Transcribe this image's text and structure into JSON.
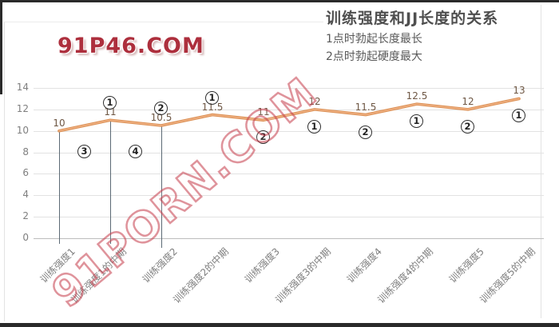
{
  "watermarks": {
    "top": "91P46.COM",
    "diagonal": "91PORN.COM"
  },
  "header": {
    "title": "训练强度和JJ长度的关系",
    "subtitle1": "1点时勃起长度最长",
    "subtitle2": "2点时勃起硬度最大"
  },
  "chart_data": {
    "type": "line",
    "title": "训练强度和JJ长度的关系",
    "categories": [
      "训练强度1",
      "训练强度1的中期",
      "训练强度2",
      "训练强度2的中期",
      "训练强度3",
      "训练强度3的中期",
      "训练强度4",
      "训练强度4的中期",
      "训练强度5",
      "训练强度5的中期"
    ],
    "values": [
      10,
      11,
      10.5,
      11.5,
      11,
      12,
      11.5,
      12.5,
      12,
      13
    ],
    "data_labels": [
      "10",
      "11",
      "10.5",
      "11.5",
      "11",
      "12",
      "11.5",
      "12.5",
      "12",
      "13"
    ],
    "xlabel": "",
    "ylabel": "",
    "ylim": [
      0,
      14
    ],
    "yticks": [
      0,
      2,
      4,
      6,
      8,
      10,
      12,
      14
    ],
    "grid": true,
    "legend": "none",
    "line_color": "#dc9156",
    "line_highlight": "#f0b285",
    "label_color": "#6e5744",
    "axis_text_color": "#7f7f7f",
    "drop_line_color": "#5c6a75",
    "drop_lines_at_points": [
      1,
      2,
      3
    ],
    "annotations": [
      {
        "symbol": "1",
        "point": 2,
        "pos": "above"
      },
      {
        "symbol": "2",
        "point": 3,
        "pos": "above"
      },
      {
        "symbol": "1",
        "point": 4,
        "pos": "above"
      },
      {
        "symbol": "3",
        "point": 1.5,
        "pos": "mid-below"
      },
      {
        "symbol": "4",
        "point": 2.5,
        "pos": "mid-below"
      },
      {
        "symbol": "2",
        "point": 5,
        "pos": "below"
      },
      {
        "symbol": "1",
        "point": 6,
        "pos": "below"
      },
      {
        "symbol": "2",
        "point": 7,
        "pos": "below"
      },
      {
        "symbol": "1",
        "point": 8,
        "pos": "below"
      },
      {
        "symbol": "2",
        "point": 9,
        "pos": "below"
      },
      {
        "symbol": "1",
        "point": 10,
        "pos": "below"
      }
    ]
  }
}
